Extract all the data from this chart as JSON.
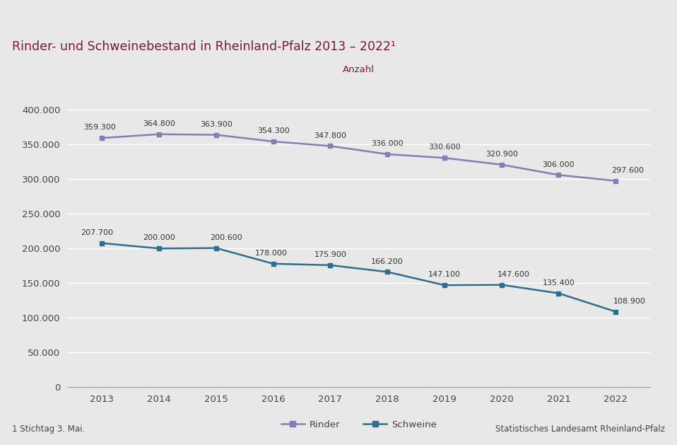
{
  "title": "Rinder- und Schweinebestand in Rheinland-Pfalz 2013 – 2022¹",
  "ylabel": "Anzahl",
  "footnote_left": "1 Stichtag 3. Mai.",
  "footnote_right": "Statistisches Landesamt Rheinland-Pfalz",
  "years": [
    2013,
    2014,
    2015,
    2016,
    2017,
    2018,
    2019,
    2020,
    2021,
    2022
  ],
  "rinder": [
    359300,
    364800,
    363900,
    354300,
    347800,
    336000,
    330600,
    320900,
    306000,
    297600
  ],
  "schweine": [
    207700,
    200000,
    200600,
    178000,
    175900,
    166200,
    147100,
    147600,
    135400,
    108900
  ],
  "rinder_labels": [
    "359.300",
    "364.800",
    "363.900",
    "354.300",
    "347.800",
    "336.000",
    "330.600",
    "320.900",
    "306.000",
    "297.600"
  ],
  "schweine_labels": [
    "207.700",
    "200.000",
    "200.600",
    "178.000",
    "175.900",
    "166.200",
    "147.100",
    "147.600",
    "135.400",
    "108.900"
  ],
  "rinder_color": "#8B7BB5",
  "schweine_color": "#2E6E8E",
  "title_color": "#7B1A2A",
  "ylabel_color": "#7B1A2A",
  "background_color": "#E8E8E8",
  "plot_bg_color": "#E8E8E8",
  "top_bar_color": "#7B1A2A",
  "grid_color": "#FFFFFF",
  "tick_color": "#444444",
  "label_color": "#333333",
  "sep_color": "#CCCCCC",
  "ylim": [
    0,
    430000
  ],
  "yticks": [
    0,
    50000,
    100000,
    150000,
    200000,
    250000,
    300000,
    350000,
    400000
  ]
}
